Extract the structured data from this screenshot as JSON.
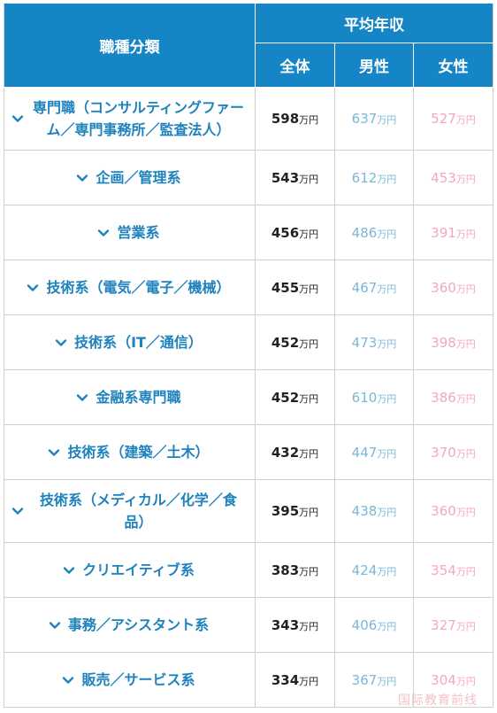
{
  "header": {
    "category_title": "職種分類",
    "income_group_title": "平均年収",
    "col_all": "全体",
    "col_male": "男性",
    "col_female": "女性"
  },
  "unit": "万円",
  "icons": {
    "expand": "chevron-down-icon"
  },
  "colors": {
    "header_bg": "#1585c5",
    "category_text": "#1e82bd",
    "male_text": "#7ab7d8",
    "female_text": "#f3a6c4"
  },
  "rows": [
    {
      "category": "専門職（コンサルティングファーム／専門事務所／監査法人）",
      "all": "598",
      "male": "637",
      "female": "527"
    },
    {
      "category": "企画／管理系",
      "all": "543",
      "male": "612",
      "female": "453"
    },
    {
      "category": "営業系",
      "all": "456",
      "male": "486",
      "female": "391"
    },
    {
      "category": "技術系（電気／電子／機械）",
      "all": "455",
      "male": "467",
      "female": "360"
    },
    {
      "category": "技術系（IT／通信）",
      "all": "452",
      "male": "473",
      "female": "398"
    },
    {
      "category": "金融系専門職",
      "all": "452",
      "male": "610",
      "female": "386"
    },
    {
      "category": "技術系（建築／土木）",
      "all": "432",
      "male": "447",
      "female": "370"
    },
    {
      "category": "技術系（メディカル／化学／食品）",
      "all": "395",
      "male": "438",
      "female": "360"
    },
    {
      "category": "クリエイティブ系",
      "all": "383",
      "male": "424",
      "female": "354"
    },
    {
      "category": "事務／アシスタント系",
      "all": "343",
      "male": "406",
      "female": "327"
    },
    {
      "category": "販売／サービス系",
      "all": "334",
      "male": "367",
      "female": "304"
    }
  ],
  "watermark": "国际教育前线"
}
